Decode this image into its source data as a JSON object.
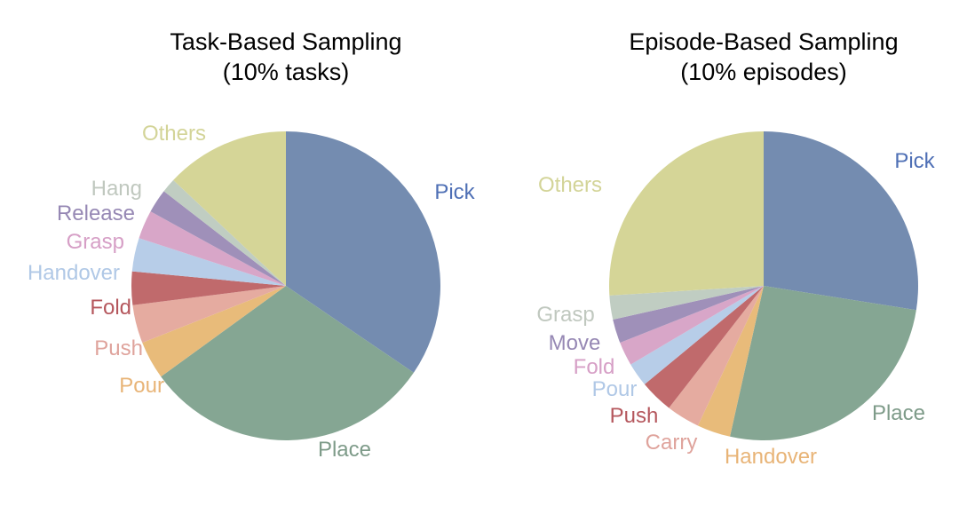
{
  "chart_data": [
    {
      "type": "pie",
      "title": "Task-Based Sampling",
      "subtitle": "(10% tasks)",
      "start_angle_deg": 90,
      "direction": "clockwise",
      "categories": [
        "Pick",
        "Place",
        "Pour",
        "Push",
        "Fold",
        "Handover",
        "Grasp",
        "Release",
        "Hang",
        "Others"
      ],
      "values": [
        34.5,
        30.5,
        4,
        4,
        3.5,
        3.5,
        3,
        2.5,
        1.5,
        13
      ]
    },
    {
      "type": "pie",
      "title": "Episode-Based Sampling",
      "subtitle": "(10% episodes)",
      "start_angle_deg": 90,
      "direction": "clockwise",
      "categories": [
        "Pick",
        "Place",
        "Handover",
        "Carry",
        "Push",
        "Pour",
        "Fold",
        "Move",
        "Grasp",
        "Others"
      ],
      "values": [
        27.5,
        26,
        3.5,
        3.5,
        3.5,
        2.5,
        2.5,
        2.5,
        2.5,
        26
      ]
    }
  ],
  "colors": [
    "#748cb0",
    "#85a693",
    "#e8bb7a",
    "#e5aba0",
    "#c06a6c",
    "#b7cde8",
    "#d8a6c8",
    "#9f90b9",
    "#c0cdc2",
    "#d5d597"
  ],
  "label_colors": [
    "#4e6fb5",
    "#7e9b89",
    "#e8b477",
    "#dfa39c",
    "#b5575d",
    "#b0c8e6",
    "#d69fc6",
    "#9688b4",
    "#c0c8bf",
    "#d3d498"
  ]
}
